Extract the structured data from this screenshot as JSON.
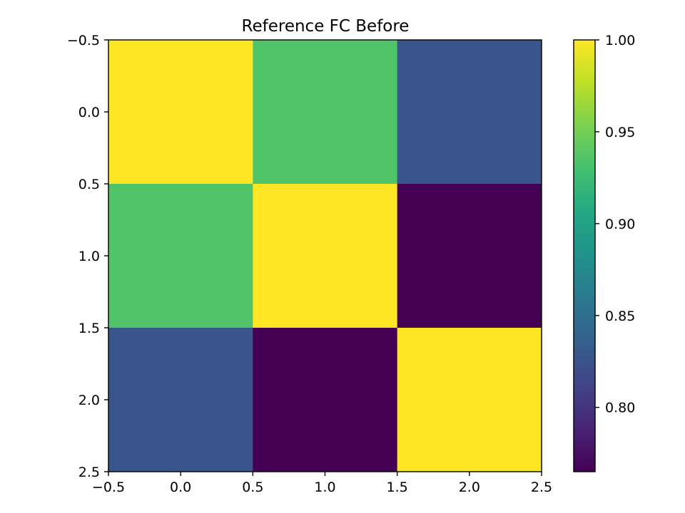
{
  "chart_data": {
    "type": "heatmap",
    "title": "Reference FC Before",
    "xlabel": "",
    "ylabel": "",
    "matrix": [
      [
        1.0,
        0.935,
        0.827
      ],
      [
        0.935,
        1.0,
        0.765
      ],
      [
        0.827,
        0.765,
        1.0
      ]
    ],
    "xlim": [
      -0.5,
      2.5
    ],
    "ylim": [
      2.5,
      -0.5
    ],
    "x_ticks": [
      -0.5,
      0.0,
      0.5,
      1.0,
      1.5,
      2.0,
      2.5
    ],
    "y_ticks": [
      -0.5,
      0.0,
      0.5,
      1.0,
      1.5,
      2.0,
      2.5
    ],
    "x_tick_labels": [
      "−0.5",
      "0.0",
      "0.5",
      "1.0",
      "1.5",
      "2.0",
      "2.5"
    ],
    "y_tick_labels": [
      "−0.5",
      "0.0",
      "0.5",
      "1.0",
      "1.5",
      "2.0",
      "2.5"
    ],
    "colormap": "viridis",
    "colorbar": {
      "range": [
        0.765,
        1.0
      ],
      "ticks": [
        0.8,
        0.85,
        0.9,
        0.95,
        1.0
      ],
      "tick_labels": [
        "0.80",
        "0.85",
        "0.90",
        "0.95",
        "1.00"
      ]
    },
    "grid": false
  }
}
